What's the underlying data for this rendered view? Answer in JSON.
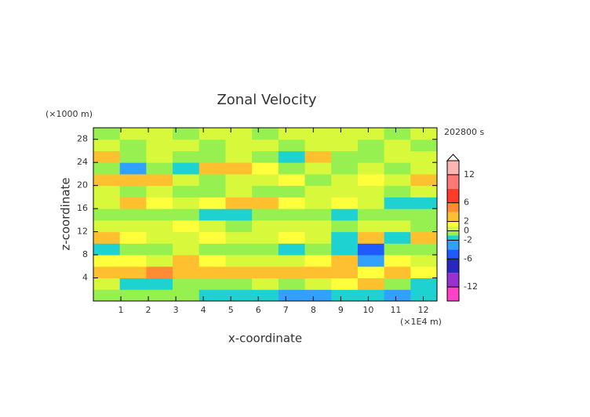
{
  "chart_data": {
    "type": "contour",
    "title": "Zonal Velocity",
    "y_unit_label": "(×1000 m)",
    "x_unit_label": "(×1E4 m)",
    "time_label": "202800 s",
    "xlabel": "x-coordinate",
    "ylabel": "z-coordinate",
    "xlim": [
      0,
      12.5
    ],
    "ylim": [
      0,
      30
    ],
    "xticks": [
      1,
      2,
      3,
      4,
      5,
      6,
      7,
      8,
      9,
      10,
      11,
      12
    ],
    "yticks": [
      4,
      8,
      12,
      16,
      20,
      24,
      28
    ],
    "levels": [
      -15,
      -12,
      -9,
      -6,
      -4,
      -2,
      -1,
      0,
      1,
      2,
      4,
      6,
      9,
      12,
      15
    ],
    "colors": [
      "#ff40c8",
      "#9a30d0",
      "#2828c0",
      "#1e5aff",
      "#32a0ff",
      "#1ed2d2",
      "#96f050",
      "#d8f83c",
      "#ffff3c",
      "#ffc030",
      "#ff8c32",
      "#ff3c28",
      "#ff7878",
      "#ffb4b4"
    ],
    "colorbar_lim": [
      -15,
      15
    ],
    "colorbar_ticks": [
      12,
      6,
      2,
      0,
      -2,
      -6,
      -12
    ],
    "z": [
      [
        -1,
        -1,
        -1,
        -1,
        -2,
        -2,
        -2,
        -3,
        -3,
        -2,
        -2,
        -3,
        -2
      ],
      [
        0.5,
        -1.5,
        -1.5,
        -1,
        -1,
        -0.5,
        0.5,
        -0.5,
        0.5,
        1.5,
        2.5,
        -0.5,
        -1.5
      ],
      [
        3,
        2.5,
        4.5,
        3.5,
        3,
        3,
        2.5,
        3,
        3.5,
        3,
        1.5,
        2.5,
        1.5
      ],
      [
        1.5,
        1.5,
        0.5,
        2.5,
        1.5,
        0.5,
        0.5,
        0.5,
        1.5,
        2.5,
        -2.5,
        1.5,
        0.5
      ],
      [
        -1.5,
        -0.5,
        -0.5,
        0.5,
        -0.5,
        -0.5,
        -0.5,
        -1.5,
        -0.5,
        -1.5,
        -4.5,
        -0.5,
        -0.5
      ],
      [
        3,
        1.5,
        0.5,
        0.5,
        1.5,
        0.5,
        0.5,
        1.5,
        0.5,
        -1.5,
        2.5,
        -1.5,
        2.5
      ],
      [
        0.5,
        0.5,
        0.5,
        1.5,
        0.5,
        -0.5,
        0.5,
        0.5,
        0.5,
        -0.5,
        0.5,
        0.5,
        -0.5
      ],
      [
        -0.5,
        -0.5,
        -0.5,
        -0.5,
        -1.5,
        -1.5,
        -0.5,
        -0.5,
        -0.5,
        -1.5,
        -0.5,
        -0.5,
        -0.5
      ],
      [
        0.5,
        2.5,
        1.5,
        0.5,
        1.5,
        2.5,
        2.5,
        1.5,
        0.5,
        1.5,
        0.5,
        -1.5,
        -1.5
      ],
      [
        0.5,
        -0.5,
        0.5,
        -0.5,
        -0.5,
        0.5,
        -0.5,
        -0.5,
        0.5,
        0.5,
        0.5,
        -0.5,
        0.5
      ],
      [
        3,
        2.5,
        3,
        0.5,
        -0.5,
        0.5,
        0.5,
        1.5,
        -0.5,
        0.5,
        1.5,
        0.5,
        2.5
      ],
      [
        -0.5,
        -2.5,
        -0.5,
        -1.5,
        2.5,
        3,
        1.5,
        -0.5,
        0.5,
        -0.5,
        0.5,
        -0.5,
        0.5
      ],
      [
        2.5,
        -0.5,
        0.5,
        -0.5,
        -0.5,
        0.5,
        -0.5,
        -1.5,
        2.5,
        -0.5,
        -0.5,
        0.5,
        0.5
      ],
      [
        0.5,
        -0.5,
        0.5,
        0.5,
        -0.5,
        0.5,
        0.5,
        -0.5,
        0.5,
        0.5,
        -0.5,
        0.5,
        -0.5
      ],
      [
        -0.5,
        0.5,
        0.5,
        -0.5,
        0.5,
        0.5,
        -0.5,
        0.5,
        0.5,
        0.5,
        0.5,
        -0.5,
        0.5
      ]
    ]
  }
}
